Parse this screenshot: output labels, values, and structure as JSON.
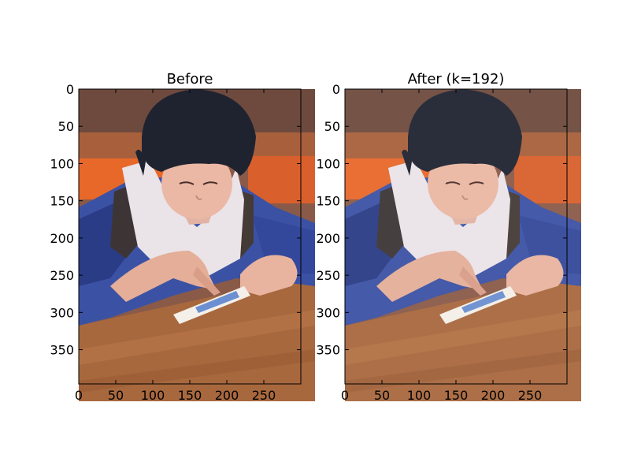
{
  "chart_data": [
    {
      "type": "image",
      "title": "Before",
      "xlim": [
        0,
        300
      ],
      "ylim": [
        396,
        0
      ],
      "xticks": [
        0,
        50,
        100,
        150,
        200,
        250
      ],
      "yticks": [
        0,
        50,
        100,
        150,
        200,
        250,
        300,
        350
      ],
      "xlabel": "",
      "ylabel": ""
    },
    {
      "type": "image",
      "title": "After (k=192)",
      "xlim": [
        0,
        300
      ],
      "ylim": [
        396,
        0
      ],
      "xticks": [
        0,
        50,
        100,
        150,
        200,
        250
      ],
      "yticks": [
        0,
        50,
        100,
        150,
        200,
        250,
        300,
        350
      ],
      "xlabel": "",
      "ylabel": ""
    }
  ]
}
